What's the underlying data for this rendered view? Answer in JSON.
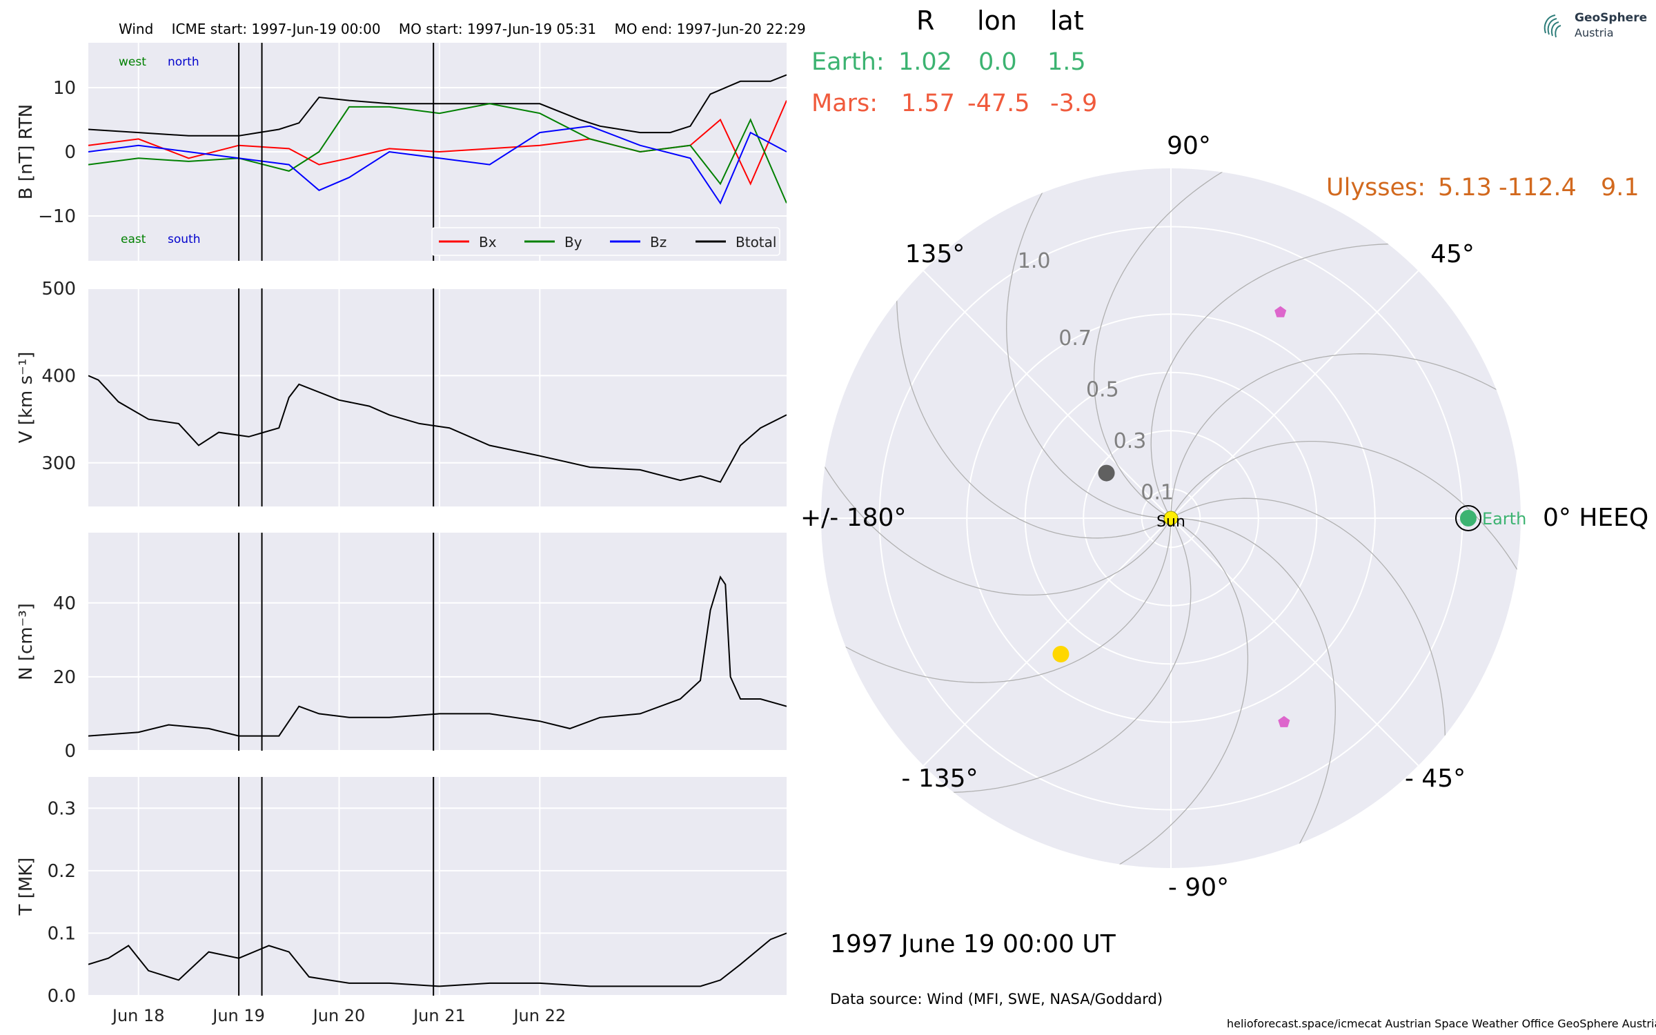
{
  "header": {
    "spacecraft": "Wind",
    "icme_start": "ICME start: 1997-Jun-19 00:00",
    "mo_start": "MO start: 1997-Jun-19 05:31",
    "mo_end": "MO end: 1997-Jun-20 22:29"
  },
  "position_table": {
    "headers": [
      "R",
      "lon",
      "lat"
    ],
    "rows": [
      {
        "label": "Earth:",
        "r": "1.02",
        "lon": "0.0",
        "lat": "1.5",
        "color": "#3cb371"
      },
      {
        "label": "Mars:",
        "r": "1.57",
        "lon": "-47.5",
        "lat": "-3.9",
        "color": "#f05a3c"
      }
    ],
    "ulysses": {
      "label": "Ulysses:",
      "r": "5.13",
      "lon": "-112.4",
      "lat": "9.1",
      "color": "#d2691e"
    }
  },
  "logo": {
    "line1": "GeoSphere",
    "line2": "Austria"
  },
  "date_label": "1997 June 19  00:00 UT",
  "data_source": "Data source: Wind (MFI, SWE, NASA/Goddard)",
  "footer": "helioforecast.space/icmecat   Austrian Space Weather Office   GeoSphere Austria",
  "chart_data": [
    {
      "type": "line",
      "id": "b_field",
      "ylabel": "B [nT] RTN",
      "ylim": [
        -17,
        17
      ],
      "yticks": [
        "10",
        "0",
        "−10"
      ],
      "ytick_values": [
        10,
        0,
        -10
      ],
      "annotations": {
        "west": "west",
        "north": "north",
        "east": "east",
        "south": "south"
      },
      "legend": [
        "Bx",
        "By",
        "Bz",
        "Btotal"
      ],
      "colors": {
        "Bx": "#ff0000",
        "By": "#008000",
        "Bz": "#0000ff",
        "Btotal": "#000000"
      },
      "series": [
        {
          "name": "Btotal",
          "x": [
            0,
            0.5,
            1,
            1.5,
            1.9,
            2.1,
            2.3,
            2.6,
            3,
            3.5,
            4,
            4.5,
            4.9,
            5.1,
            5.5,
            5.8,
            6.0,
            6.2,
            6.5,
            6.8,
            6.96
          ],
          "y": [
            3.5,
            3,
            2.5,
            2.5,
            3.5,
            4.5,
            8.5,
            8,
            7.5,
            7.5,
            7.5,
            7.5,
            5,
            4,
            3,
            3,
            4,
            9,
            11,
            11,
            12
          ]
        },
        {
          "name": "Bx",
          "x": [
            0,
            0.5,
            1,
            1.5,
            2,
            2.3,
            2.6,
            3,
            3.5,
            4,
            4.5,
            5,
            5.5,
            6,
            6.3,
            6.6,
            6.96
          ],
          "y": [
            1,
            2,
            -1,
            1,
            0.5,
            -2,
            -1,
            0.5,
            0,
            0.5,
            1,
            2,
            0,
            1,
            5,
            -5,
            8
          ]
        },
        {
          "name": "By",
          "x": [
            0,
            0.5,
            1,
            1.5,
            2,
            2.3,
            2.6,
            3,
            3.5,
            4,
            4.5,
            5,
            5.5,
            6,
            6.3,
            6.6,
            6.96
          ],
          "y": [
            -2,
            -1,
            -1.5,
            -1,
            -3,
            0,
            7,
            7,
            6,
            7.5,
            6,
            2,
            0,
            1,
            -5,
            5,
            -8
          ]
        },
        {
          "name": "Bz",
          "x": [
            0,
            0.5,
            1,
            1.5,
            2,
            2.3,
            2.6,
            3,
            3.5,
            4,
            4.5,
            5,
            5.5,
            6,
            6.3,
            6.6,
            6.96
          ],
          "y": [
            0,
            1,
            0,
            -1,
            -2,
            -6,
            -4,
            0,
            -1,
            -2,
            3,
            4,
            1,
            -1,
            -8,
            3,
            0
          ]
        }
      ]
    },
    {
      "type": "line",
      "id": "speed",
      "ylabel": "V [km s⁻¹]",
      "ylim": [
        250,
        500
      ],
      "yticks": [
        "500",
        "400",
        "300"
      ],
      "ytick_values": [
        500,
        400,
        300
      ],
      "series": [
        {
          "name": "V",
          "x": [
            0,
            0.1,
            0.3,
            0.6,
            0.9,
            1.1,
            1.3,
            1.6,
            1.9,
            2.0,
            2.1,
            2.5,
            2.8,
            3.0,
            3.3,
            3.6,
            4.0,
            4.5,
            5.0,
            5.5,
            5.9,
            6.1,
            6.3,
            6.5,
            6.7,
            6.96
          ],
          "y": [
            400,
            395,
            370,
            350,
            345,
            320,
            335,
            330,
            340,
            375,
            390,
            372,
            365,
            355,
            345,
            340,
            320,
            308,
            295,
            292,
            280,
            285,
            278,
            320,
            340,
            355
          ]
        }
      ]
    },
    {
      "type": "line",
      "id": "density",
      "ylabel": "N [cm⁻³]",
      "ylim": [
        0,
        59
      ],
      "yticks": [
        "40",
        "20",
        "0"
      ],
      "ytick_values": [
        40,
        20,
        0
      ],
      "series": [
        {
          "name": "N",
          "x": [
            0,
            0.5,
            0.8,
            1.2,
            1.5,
            1.9,
            2.1,
            2.3,
            2.6,
            3,
            3.5,
            4,
            4.5,
            4.8,
            5.1,
            5.5,
            5.9,
            6.1,
            6.2,
            6.3,
            6.35,
            6.4,
            6.5,
            6.7,
            6.96
          ],
          "y": [
            4,
            5,
            7,
            6,
            4,
            4,
            12,
            10,
            9,
            9,
            10,
            10,
            8,
            6,
            9,
            10,
            14,
            19,
            38,
            47,
            45,
            20,
            14,
            14,
            12
          ]
        }
      ]
    },
    {
      "type": "line",
      "id": "temperature",
      "ylabel": "T [MK]",
      "ylim": [
        0,
        0.35
      ],
      "yticks": [
        "0.3",
        "0.2",
        "0.1",
        "0.0"
      ],
      "ytick_values": [
        0.3,
        0.2,
        0.1,
        0.0
      ],
      "series": [
        {
          "name": "T",
          "x": [
            0,
            0.2,
            0.4,
            0.6,
            0.9,
            1.2,
            1.5,
            1.8,
            2.0,
            2.2,
            2.4,
            2.6,
            3,
            3.5,
            4,
            4.5,
            5,
            5.5,
            5.9,
            6.1,
            6.2,
            6.3,
            6.5,
            6.8,
            6.96
          ],
          "y": [
            0.05,
            0.06,
            0.08,
            0.04,
            0.025,
            0.07,
            0.06,
            0.08,
            0.07,
            0.03,
            0.025,
            0.02,
            0.02,
            0.015,
            0.02,
            0.02,
            0.015,
            0.015,
            0.015,
            0.015,
            0.02,
            0.025,
            0.05,
            0.09,
            0.1
          ]
        }
      ]
    }
  ],
  "time_axis": {
    "xlim": [
      0,
      6.96
    ],
    "tick_positions": [
      0.5,
      1.5,
      2.5,
      3.5,
      4.5
    ],
    "tick_labels": [
      "Jun 18",
      "Jun 19",
      "Jun 20",
      "Jun 21",
      "Jun 22"
    ],
    "event_lines": [
      1.5,
      1.73,
      3.44
    ]
  },
  "polar": {
    "type": "polar",
    "angle_labels": [
      {
        "text": "90°",
        "deg": 90
      },
      {
        "text": "45°",
        "deg": 45
      },
      {
        "text": "0° HEEQ",
        "deg": 0
      },
      {
        "text": "- 45°",
        "deg": -45
      },
      {
        "text": "- 90°",
        "deg": -90
      },
      {
        "text": "- 135°",
        "deg": -135
      },
      {
        "text": "+/- 180°",
        "deg": 180
      },
      {
        "text": "135°",
        "deg": 135
      }
    ],
    "radial_ticks": [
      {
        "text": "0.1",
        "r": 0.1
      },
      {
        "text": "0.3",
        "r": 0.3
      },
      {
        "text": "0.5",
        "r": 0.5
      },
      {
        "text": "0.7",
        "r": 0.7
      },
      {
        "text": "1.0",
        "r": 1.0
      }
    ],
    "sun_label": "Sun",
    "earth_label": "Earth",
    "bodies": [
      {
        "name": "Sun",
        "r": 0.0,
        "deg": 0,
        "color": "#ffee00"
      },
      {
        "name": "Earth",
        "r": 1.02,
        "deg": 0,
        "color": "#3cb371"
      },
      {
        "name": "gray-body",
        "r": 0.27,
        "deg": 145,
        "color": "#606060"
      },
      {
        "name": "yellow-body",
        "r": 0.6,
        "deg": -129,
        "color": "#ffd700"
      },
      {
        "name": "pink-pentagon-1",
        "r": 0.8,
        "deg": 62,
        "color": "#dd66cc"
      },
      {
        "name": "pink-pentagon-2",
        "r": 0.8,
        "deg": -61,
        "color": "#dd66cc"
      }
    ]
  }
}
